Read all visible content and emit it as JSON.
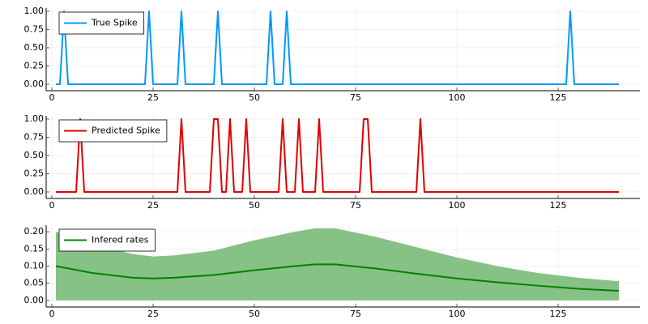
{
  "chart_data": [
    {
      "type": "line",
      "grid": true,
      "legend": "top left",
      "xlim": [
        -1.4,
        145.2
      ],
      "xticks": [
        0,
        25,
        50,
        75,
        100,
        125
      ],
      "ylim": [
        -0.089,
        1.044
      ],
      "yticks": [
        {
          "value": 0,
          "label": "0.00"
        },
        {
          "value": 0.25,
          "label": "0.25"
        },
        {
          "value": 0.5,
          "label": "0.50"
        },
        {
          "value": 0.75,
          "label": "0.75"
        },
        {
          "value": 1,
          "label": "1.00"
        }
      ],
      "x": [
        1,
        2,
        3,
        4,
        23,
        24,
        25,
        31,
        32,
        33,
        40,
        41,
        42,
        53,
        54,
        55,
        57,
        58,
        59,
        127,
        128,
        129,
        140
      ],
      "series": [
        {
          "name": "True Spike",
          "color": "#009af9",
          "values": [
            0,
            0,
            1,
            0,
            0,
            1,
            0,
            0,
            1,
            0,
            0,
            1,
            0,
            0,
            1,
            0,
            0,
            1,
            0,
            0,
            1,
            0,
            0
          ]
        }
      ]
    },
    {
      "type": "line",
      "grid": true,
      "legend": "top left",
      "xlim": [
        -1.4,
        145.2
      ],
      "xticks": [
        0,
        25,
        50,
        75,
        100,
        125
      ],
      "ylim": [
        -0.089,
        1.044
      ],
      "yticks": [
        {
          "value": 0,
          "label": "0.00"
        },
        {
          "value": 0.25,
          "label": "0.25"
        },
        {
          "value": 0.5,
          "label": "0.50"
        },
        {
          "value": 0.75,
          "label": "0.75"
        },
        {
          "value": 1,
          "label": "1.00"
        }
      ],
      "x": [
        1,
        6,
        7,
        8,
        31,
        32,
        33,
        39,
        40,
        41,
        42,
        43,
        44,
        45,
        47,
        48,
        49,
        56,
        57,
        58,
        60,
        61,
        62,
        65,
        66,
        67,
        76,
        77,
        78,
        79,
        90,
        91,
        92,
        140
      ],
      "series": [
        {
          "name": "Predicted Spike",
          "color": "#e00000",
          "values": [
            0,
            0,
            1,
            0,
            0,
            1,
            0,
            0,
            1,
            1,
            0,
            0,
            1,
            0,
            0,
            1,
            0,
            0,
            1,
            0,
            0,
            1,
            0,
            0,
            1,
            0,
            0,
            1,
            1,
            0,
            0,
            1,
            0,
            0
          ]
        }
      ]
    },
    {
      "type": "line",
      "grid": true,
      "legend": "top left",
      "xlim": [
        -1.4,
        145.2
      ],
      "xticks": [
        0,
        25,
        50,
        75,
        100,
        125
      ],
      "ylim": [
        -0.019,
        0.219
      ],
      "yticks": [
        {
          "value": 0,
          "label": "0.00"
        },
        {
          "value": 0.05,
          "label": "0.05"
        },
        {
          "value": 0.1,
          "label": "0.10"
        },
        {
          "value": 0.15,
          "label": "0.15"
        },
        {
          "value": 0.2,
          "label": "0.20"
        }
      ],
      "x": [
        1,
        10,
        20,
        25,
        30,
        40,
        50,
        60,
        65,
        70,
        80,
        90,
        100,
        110,
        120,
        130,
        140
      ],
      "band": {
        "color": "#7fbf7f",
        "lower": [
          0,
          0,
          0,
          0,
          0,
          0,
          0,
          0,
          0,
          0,
          0,
          0,
          0,
          0,
          0,
          0,
          0
        ],
        "upper": [
          0.2,
          0.165,
          0.135,
          0.128,
          0.131,
          0.145,
          0.175,
          0.2,
          0.21,
          0.21,
          0.185,
          0.155,
          0.125,
          0.1,
          0.08,
          0.066,
          0.056
        ]
      },
      "series": [
        {
          "name": "Infered rates",
          "color": "#008000",
          "values": [
            0.1,
            0.08,
            0.066,
            0.064,
            0.066,
            0.074,
            0.088,
            0.1,
            0.105,
            0.105,
            0.093,
            0.078,
            0.064,
            0.053,
            0.043,
            0.034,
            0.028
          ]
        }
      ]
    }
  ]
}
